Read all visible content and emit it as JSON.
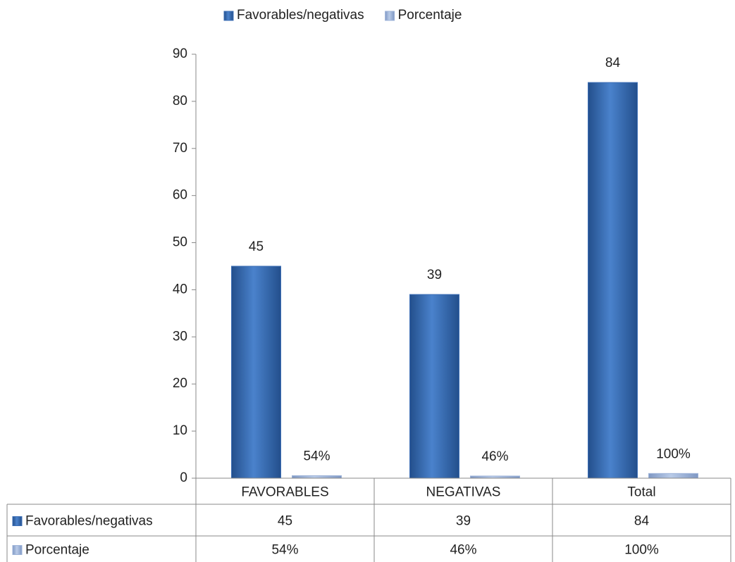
{
  "chart_data": {
    "type": "bar",
    "categories": [
      "FAVORABLES",
      "NEGATIVAS",
      "Total"
    ],
    "series": [
      {
        "name": "Favorables/negativas",
        "color": "#3d6fb6",
        "values": [
          45,
          39,
          84
        ]
      },
      {
        "name": "Porcentaje",
        "color": "#9db3d8",
        "values": [
          0.54,
          0.46,
          1.0
        ],
        "value_labels": [
          "54%",
          "46%",
          "100%"
        ]
      }
    ],
    "ylim": [
      0,
      90
    ],
    "yticks": [
      0,
      10,
      20,
      30,
      40,
      50,
      60,
      70,
      80,
      90
    ],
    "legend": "top",
    "data_table": true
  }
}
